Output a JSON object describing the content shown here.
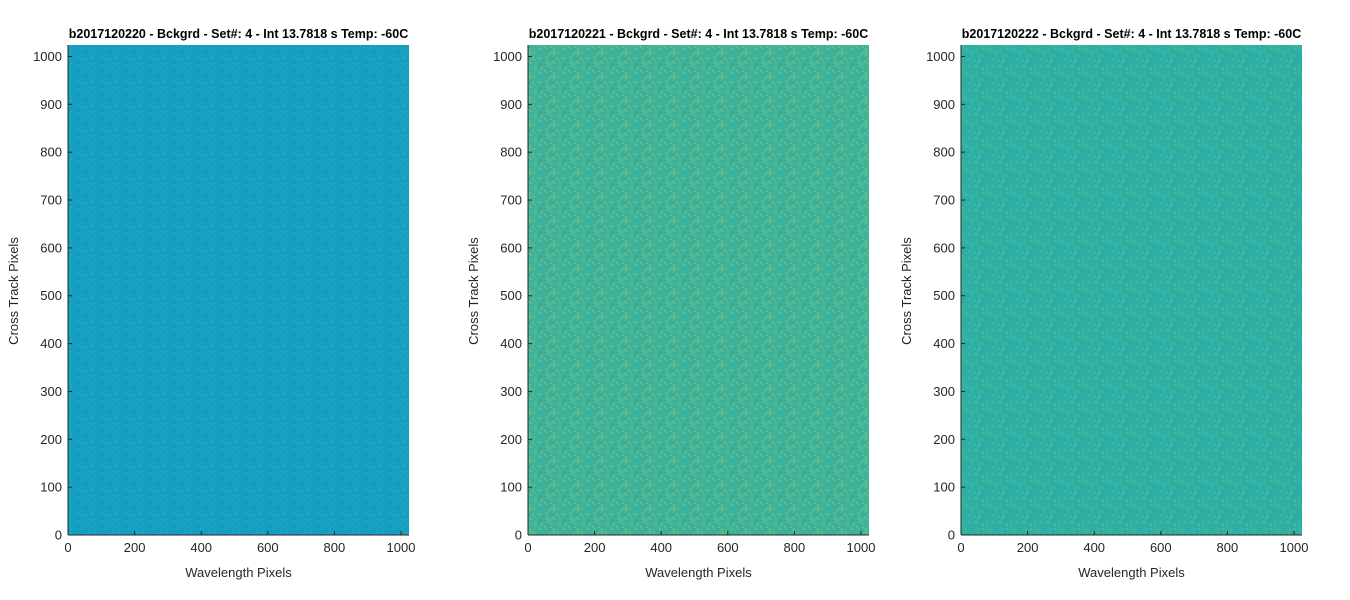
{
  "chart_data": [
    {
      "type": "heatmap",
      "title": "b2017120220 - Bckgrd - Set#: 4 - Int 13.7818 s Temp: -60C",
      "xlabel": "Wavelength Pixels",
      "ylabel": "Cross Track Pixels",
      "xlim": [
        0,
        1024
      ],
      "ylim": [
        0,
        1024
      ],
      "xticks": [
        0,
        200,
        400,
        600,
        800,
        1000
      ],
      "yticks": [
        0,
        100,
        200,
        300,
        400,
        500,
        600,
        700,
        800,
        900,
        1000
      ],
      "base_color": "#14a0c0",
      "noise_colors": [
        "#1d9ec3",
        "#23a7bd",
        "#0f9bc8"
      ]
    },
    {
      "type": "heatmap",
      "title": "b2017120221 - Bckgrd - Set#: 4 - Int 13.7818 s Temp: -60C",
      "xlabel": "Wavelength Pixels",
      "ylabel": "Cross Track Pixels",
      "xlim": [
        0,
        1024
      ],
      "ylim": [
        0,
        1024
      ],
      "xticks": [
        0,
        200,
        400,
        600,
        800,
        1000
      ],
      "yticks": [
        0,
        100,
        200,
        300,
        400,
        500,
        600,
        700,
        800,
        900,
        1000
      ],
      "base_color": "#3fb39a",
      "noise_colors": [
        "#55b890",
        "#2fae9f",
        "#6bbd85"
      ]
    },
    {
      "type": "heatmap",
      "title": "b2017120222 - Bckgrd - Set#: 4 - Int 13.7818 s Temp: -60C",
      "xlabel": "Wavelength Pixels",
      "ylabel": "Cross Track Pixels",
      "xlim": [
        0,
        1024
      ],
      "ylim": [
        0,
        1024
      ],
      "xticks": [
        0,
        200,
        400,
        600,
        800,
        1000
      ],
      "yticks": [
        0,
        100,
        200,
        300,
        400,
        500,
        600,
        700,
        800,
        900,
        1000
      ],
      "base_color": "#2cb0a6",
      "noise_colors": [
        "#3bb39c",
        "#24aaad",
        "#4cb793"
      ]
    }
  ]
}
